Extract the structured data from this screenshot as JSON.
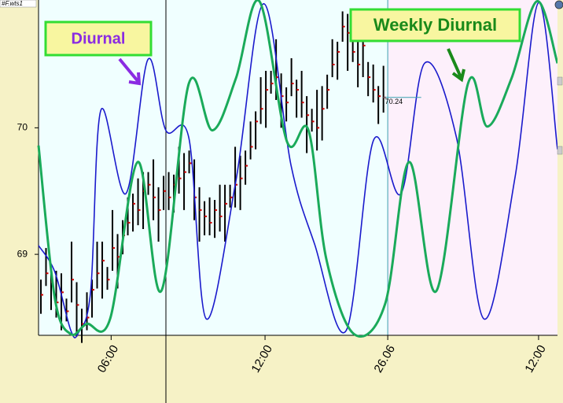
{
  "chart_data": {
    "type": "ohlc",
    "source": "#F.wts1",
    "xlim": [
      0,
      101.5
    ],
    "xticks": [
      {
        "value": 14.2,
        "label": "06:00"
      },
      {
        "value": 44.3,
        "label": "12:00"
      },
      {
        "value": 68.3,
        "label": "26.06"
      },
      {
        "value": 97.8,
        "label": "12:00"
      }
    ],
    "ylim": [
      68.36,
      71.01
    ],
    "yticks": [
      69,
      70
    ],
    "bar_color": "#000000",
    "close_color": "#cc0000",
    "last_price": 70.24,
    "x": [
      0,
      1,
      2,
      3,
      4,
      5,
      6,
      7,
      8,
      9,
      10,
      11,
      12,
      13,
      14,
      15,
      16,
      17,
      18,
      19,
      20,
      21,
      22,
      23,
      24,
      25,
      26,
      27,
      28,
      29,
      30,
      31,
      32,
      33,
      34,
      35,
      36,
      37,
      38,
      39,
      40,
      41,
      42,
      43,
      44,
      45,
      46,
      47,
      48,
      49,
      50,
      51,
      52,
      53,
      54,
      55,
      56,
      57,
      58,
      59,
      60,
      61,
      62,
      63,
      64,
      65,
      66,
      67
    ],
    "high": [
      68.8,
      69.05,
      68.86,
      68.87,
      68.85,
      68.65,
      69.1,
      68.78,
      68.57,
      68.7,
      68.8,
      69.1,
      69.1,
      68.9,
      69.35,
      69.16,
      69.27,
      69.45,
      69.48,
      69.6,
      69.65,
      69.65,
      69.75,
      69.53,
      69.62,
      69.65,
      69.63,
      69.85,
      69.8,
      69.82,
      69.75,
      69.53,
      69.42,
      69.45,
      69.43,
      69.55,
      69.55,
      69.55,
      69.85,
      69.78,
      69.82,
      70.05,
      70.13,
      70.4,
      70.45,
      70.45,
      70.7,
      70.43,
      70.32,
      70.55,
      70.38,
      70.45,
      70.25,
      70.15,
      70.3,
      70.33,
      70.42,
      70.7,
      70.68,
      70.92,
      70.9,
      70.7,
      70.8,
      70.83,
      70.52,
      70.5,
      70.33,
      70.49
    ],
    "low": [
      68.53,
      68.75,
      68.56,
      68.5,
      68.4,
      68.47,
      68.62,
      68.35,
      68.3,
      68.4,
      68.5,
      68.73,
      68.65,
      68.72,
      68.87,
      68.73,
      69.0,
      69.15,
      69.18,
      69.23,
      69.2,
      69.47,
      69.27,
      69.1,
      69.35,
      69.35,
      69.33,
      69.48,
      69.35,
      69.64,
      69.27,
      69.1,
      69.15,
      69.15,
      69.13,
      69.18,
      69.1,
      69.37,
      69.37,
      69.35,
      69.55,
      69.75,
      69.83,
      70.03,
      70.0,
      70.27,
      70.22,
      70.0,
      70.05,
      70.25,
      70.08,
      70.08,
      69.8,
      69.97,
      69.82,
      69.9,
      70.15,
      70.4,
      70.38,
      70.68,
      70.45,
      70.52,
      70.32,
      70.4,
      70.25,
      70.2,
      70.03,
      70.12
    ],
    "close": [
      68.68,
      68.85,
      68.78,
      68.62,
      68.7,
      68.55,
      68.8,
      68.6,
      68.45,
      68.5,
      68.72,
      68.85,
      68.95,
      68.8,
      69.05,
      68.98,
      69.15,
      69.25,
      69.4,
      69.35,
      69.5,
      69.55,
      69.45,
      69.35,
      69.5,
      69.45,
      69.55,
      69.6,
      69.65,
      69.72,
      69.45,
      69.35,
      69.3,
      69.25,
      69.35,
      69.3,
      69.4,
      69.45,
      69.55,
      69.6,
      69.7,
      69.85,
      70.05,
      70.15,
      70.3,
      70.35,
      70.4,
      70.25,
      70.2,
      70.35,
      70.3,
      70.2,
      70.1,
      70.05,
      70.0,
      70.15,
      70.3,
      70.5,
      70.6,
      70.8,
      70.75,
      70.6,
      70.5,
      70.65,
      70.4,
      70.3,
      70.25,
      70.24
    ],
    "series": [
      {
        "name": "Diurnal",
        "color": "#1a1acc",
        "x": [
          0,
          3.2,
          6.3,
          7.8,
          10.2,
          12.2,
          17.1,
          21.4,
          24.9,
          29.4,
          32.8,
          38.6,
          44,
          49.4,
          54,
          60.2,
          65.5,
          70.9,
          75.5,
          81.7,
          87.1,
          93.2,
          97.8,
          101.5
        ],
        "values": [
          69.07,
          68.86,
          68.4,
          68.38,
          68.71,
          70.14,
          69.48,
          70.54,
          69.98,
          69.92,
          68.49,
          69.58,
          70.98,
          69.7,
          69.08,
          68.4,
          69.9,
          69.48,
          70.51,
          69.93,
          68.49,
          69.61,
          70.99,
          69.83
        ]
      },
      {
        "name": "Weekly Diurnal",
        "color": "#1aaa5a",
        "x": [
          0,
          3.2,
          6.3,
          9.4,
          14,
          19.4,
          24,
          29.4,
          34,
          38.6,
          43.2,
          48.6,
          52.8,
          56.3,
          61.7,
          67.8,
          72.5,
          77.8,
          84,
          87.8,
          92.5,
          97.5,
          101.5
        ],
        "values": [
          69.86,
          68.65,
          68.37,
          68.45,
          68.49,
          69.73,
          68.71,
          70.35,
          69.98,
          70.39,
          71.0,
          69.89,
          69.98,
          68.96,
          68.37,
          68.61,
          69.73,
          68.71,
          70.35,
          70.01,
          70.39,
          71.0,
          70.51
        ]
      }
    ]
  }
}
